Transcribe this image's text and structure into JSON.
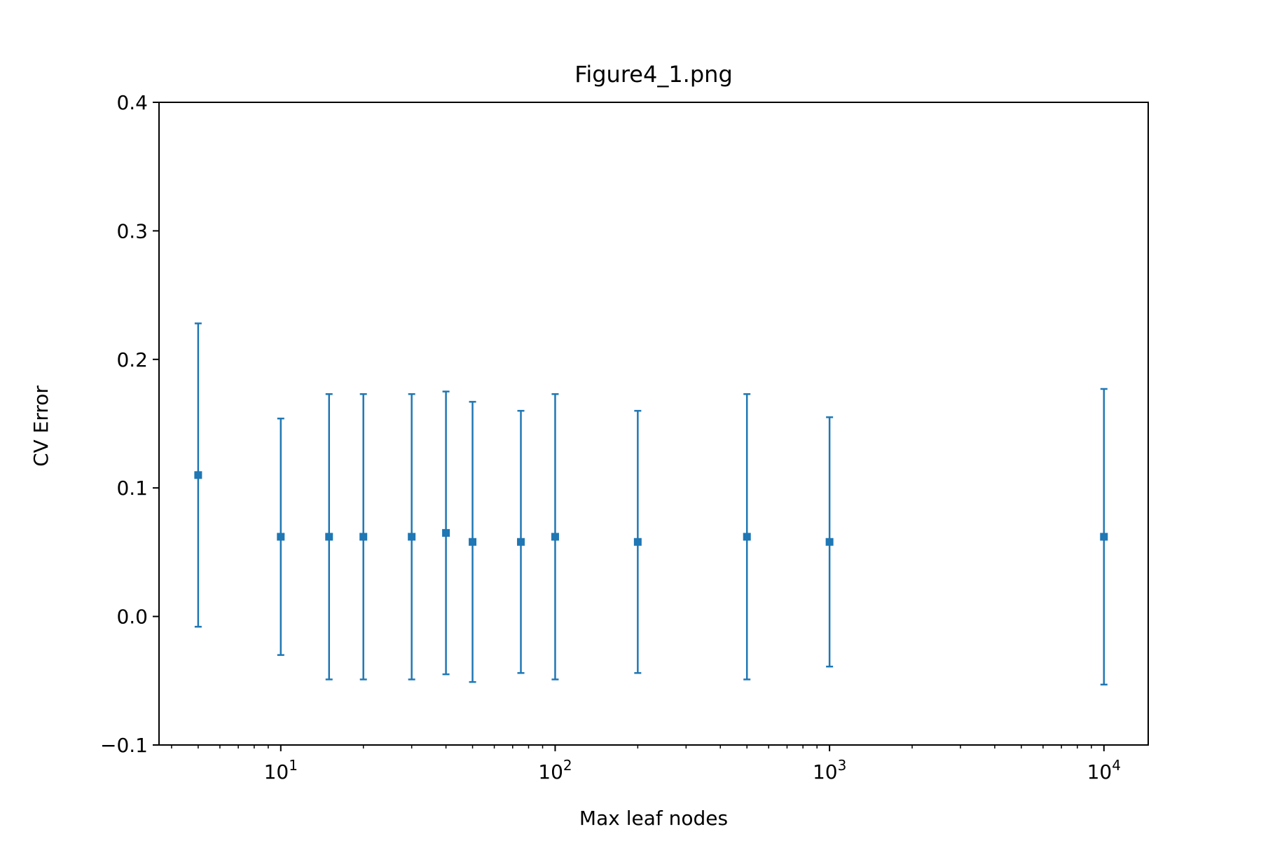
{
  "chart_data": {
    "type": "scatter",
    "title": "Figure4_1.png",
    "xlabel": "Max leaf nodes",
    "ylabel": "CV Error",
    "xscale": "log",
    "xlim": [
      3.6,
      14500
    ],
    "ylim": [
      -0.1,
      0.4
    ],
    "grid": false,
    "colors": {
      "series": "#1f77b4",
      "axes": "#000000"
    },
    "yticks": [
      {
        "value": -0.1,
        "label": "−0.1"
      },
      {
        "value": 0.0,
        "label": "0.0"
      },
      {
        "value": 0.1,
        "label": "0.1"
      },
      {
        "value": 0.2,
        "label": "0.2"
      },
      {
        "value": 0.3,
        "label": "0.3"
      },
      {
        "value": 0.4,
        "label": "0.4"
      }
    ],
    "xticks": [
      {
        "value": 10,
        "base": "10",
        "exp": "1"
      },
      {
        "value": 100,
        "base": "10",
        "exp": "2"
      },
      {
        "value": 1000,
        "base": "10",
        "exp": "3"
      },
      {
        "value": 10000,
        "base": "10",
        "exp": "4"
      }
    ],
    "series": [
      {
        "marker": "square",
        "points": [
          {
            "x": 5,
            "y": 0.11,
            "err": 0.118
          },
          {
            "x": 10,
            "y": 0.062,
            "err": 0.092
          },
          {
            "x": 15,
            "y": 0.062,
            "err": 0.111
          },
          {
            "x": 20,
            "y": 0.062,
            "err": 0.111
          },
          {
            "x": 30,
            "y": 0.062,
            "err": 0.111
          },
          {
            "x": 40,
            "y": 0.065,
            "err": 0.11
          },
          {
            "x": 50,
            "y": 0.058,
            "err": 0.109
          },
          {
            "x": 75,
            "y": 0.058,
            "err": 0.102
          },
          {
            "x": 100,
            "y": 0.062,
            "err": 0.111
          },
          {
            "x": 200,
            "y": 0.058,
            "err": 0.102
          },
          {
            "x": 500,
            "y": 0.062,
            "err": 0.111
          },
          {
            "x": 1000,
            "y": 0.058,
            "err": 0.097
          },
          {
            "x": 10000,
            "y": 0.062,
            "err": 0.115
          }
        ]
      }
    ]
  }
}
